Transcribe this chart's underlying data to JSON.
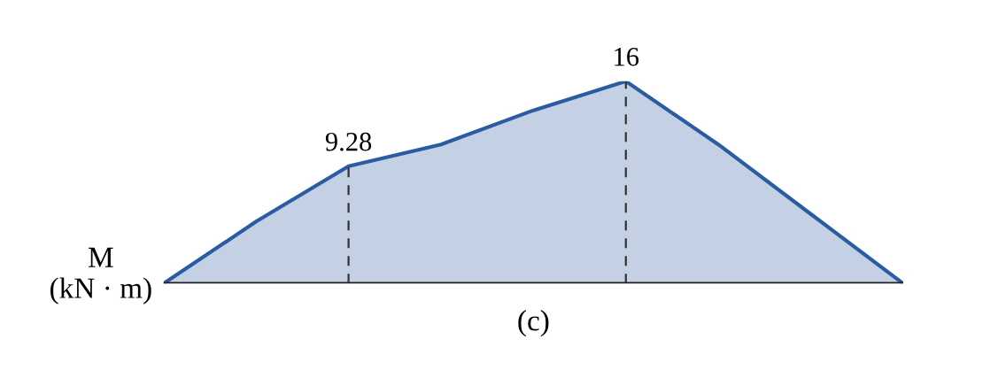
{
  "chart_data": {
    "type": "area",
    "ylabel": "M\n(kN · m)",
    "xlabel": "(c)",
    "categories": [
      null,
      null,
      null,
      null,
      null,
      null,
      null,
      null,
      null
    ],
    "series": [
      {
        "color": "#2b5ca3",
        "values": [
          0,
          4.9,
          9.28,
          11.0,
          13.7,
          16,
          11.0,
          5.5,
          0
        ],
        "value_labels": [
          null,
          null,
          "9.28",
          null,
          null,
          "16",
          null,
          null,
          null
        ]
      }
    ],
    "ylim": [
      0,
      16
    ]
  }
}
